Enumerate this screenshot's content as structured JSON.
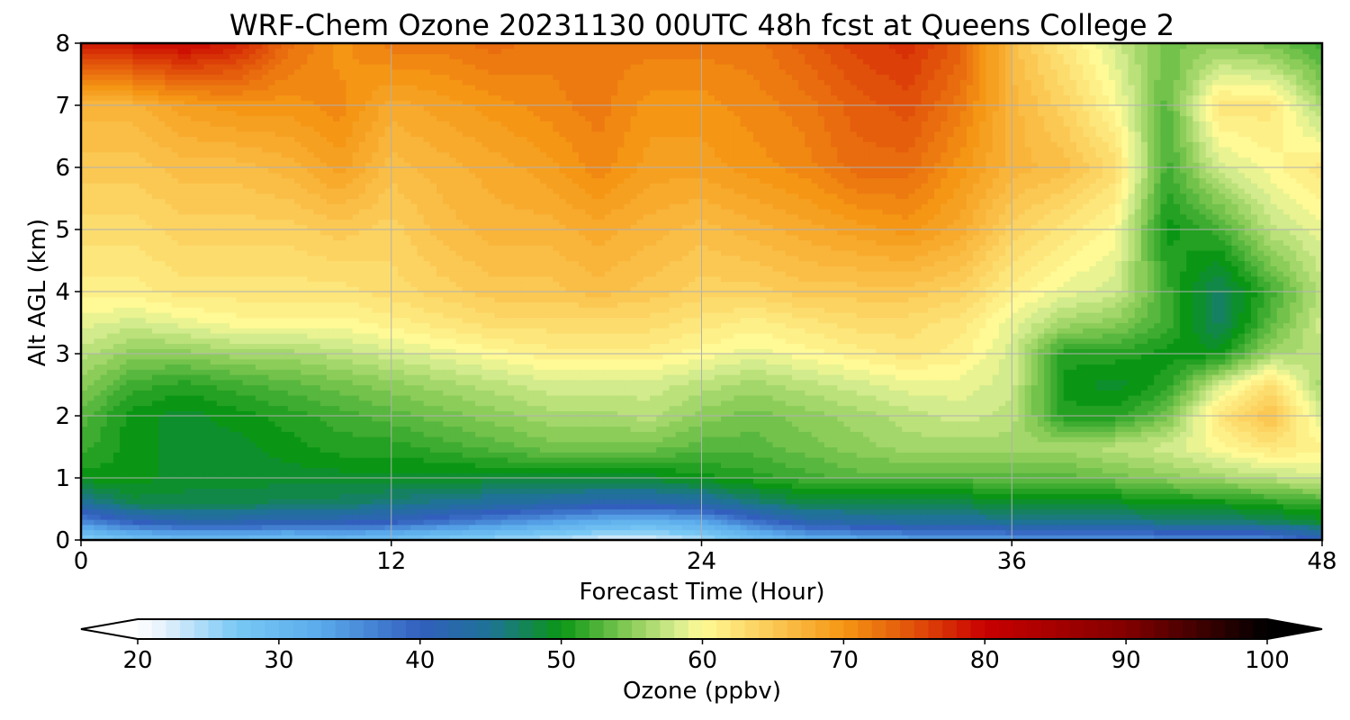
{
  "chart_data": {
    "type": "heatmap",
    "title": "WRF-Chem Ozone  20231130 00UTC 48h fcst at Queens College 2",
    "xlabel": "Forecast Time (Hour)",
    "ylabel": "Alt AGL (km)",
    "xlim": [
      0,
      48
    ],
    "ylim": [
      0,
      8
    ],
    "xticks": [
      0,
      12,
      24,
      36,
      48
    ],
    "yticks": [
      0,
      1,
      2,
      3,
      4,
      5,
      6,
      7,
      8
    ],
    "grid": true,
    "z_levels_km": [
      0.0,
      0.3,
      0.6,
      1.0,
      1.5,
      2.0,
      2.5,
      3.0,
      3.5,
      4.0,
      5.0,
      6.0,
      7.0,
      8.0
    ],
    "x_hours": [
      0,
      2,
      4,
      6,
      8,
      10,
      12,
      14,
      16,
      18,
      20,
      22,
      24,
      26,
      28,
      30,
      32,
      34,
      36,
      38,
      40,
      42,
      44,
      46,
      48
    ],
    "values_ppbv": [
      [
        25,
        28,
        29,
        29,
        28,
        29,
        28,
        26,
        25,
        24,
        22,
        22,
        24,
        28,
        31,
        32,
        33,
        33,
        34,
        34,
        35,
        35,
        35,
        36,
        40
      ],
      [
        36,
        40,
        42,
        42,
        41,
        41,
        40,
        38,
        36,
        34,
        32,
        31,
        33,
        38,
        42,
        43,
        44,
        44,
        45,
        45,
        45,
        46,
        46,
        47,
        49
      ],
      [
        44,
        48,
        48,
        48,
        47,
        47,
        46,
        45,
        44,
        43,
        42,
        42,
        43,
        46,
        48,
        48,
        48,
        48,
        49,
        49,
        49,
        50,
        50,
        51,
        52
      ],
      [
        50,
        50,
        49,
        49,
        49,
        49,
        49,
        49,
        49,
        49,
        49,
        49,
        50,
        51,
        52,
        53,
        53,
        53,
        53,
        53,
        54,
        55,
        56,
        57,
        58
      ],
      [
        52,
        50,
        49,
        49,
        50,
        51,
        51,
        52,
        53,
        54,
        54,
        54,
        53,
        53,
        54,
        55,
        56,
        56,
        56,
        56,
        57,
        58,
        60,
        62,
        61
      ],
      [
        53,
        50,
        49,
        50,
        51,
        52,
        53,
        54,
        55,
        56,
        56,
        57,
        55,
        54,
        55,
        56,
        57,
        58,
        57,
        51,
        51,
        54,
        62,
        66,
        58
      ],
      [
        55,
        52,
        51,
        52,
        53,
        54,
        55,
        56,
        57,
        58,
        58,
        58,
        57,
        56,
        57,
        58,
        59,
        59,
        58,
        50,
        49,
        51,
        58,
        63,
        56
      ],
      [
        57,
        55,
        55,
        56,
        56,
        57,
        58,
        59,
        60,
        61,
        61,
        61,
        60,
        59,
        60,
        61,
        62,
        61,
        58,
        51,
        51,
        50,
        50,
        56,
        57
      ],
      [
        59,
        58,
        59,
        60,
        60,
        60,
        61,
        62,
        63,
        63,
        63,
        63,
        62,
        61,
        62,
        63,
        63,
        62,
        59,
        56,
        55,
        52,
        47,
        53,
        58
      ],
      [
        61,
        61,
        62,
        62,
        62,
        62,
        63,
        64,
        65,
        65,
        66,
        65,
        64,
        64,
        65,
        65,
        65,
        64,
        61,
        59,
        58,
        52,
        47,
        52,
        57
      ],
      [
        63,
        63,
        64,
        64,
        64,
        65,
        64,
        66,
        67,
        67,
        68,
        67,
        66,
        67,
        68,
        69,
        70,
        68,
        64,
        62,
        60,
        50,
        52,
        57,
        59
      ],
      [
        65,
        65,
        66,
        66,
        67,
        69,
        66,
        67,
        68,
        69,
        71,
        69,
        69,
        70,
        71,
        73,
        73,
        70,
        67,
        66,
        63,
        52,
        58,
        60,
        62
      ],
      [
        67,
        67,
        69,
        70,
        70,
        71,
        68,
        69,
        70,
        71,
        72,
        70,
        70,
        71,
        72,
        74,
        75,
        72,
        67,
        64,
        60,
        53,
        62,
        62,
        56
      ],
      [
        78,
        79,
        80,
        78,
        73,
        70,
        72,
        72,
        73,
        72,
        72,
        72,
        72,
        72,
        74,
        76,
        77,
        74,
        66,
        62,
        58,
        54,
        55,
        54,
        52
      ]
    ],
    "colorbar": {
      "label": "Ozone  (ppbv)",
      "min": 20,
      "max": 100,
      "step": 1,
      "ticks": [
        20,
        30,
        40,
        50,
        60,
        70,
        80,
        90,
        100
      ],
      "extend": "both"
    }
  }
}
